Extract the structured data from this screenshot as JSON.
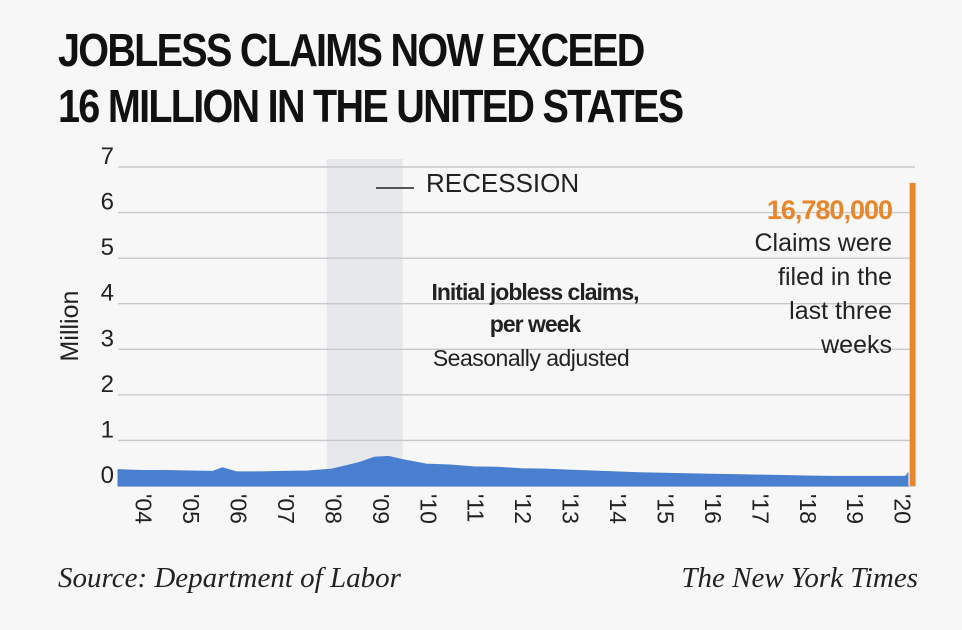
{
  "title_line1": "JOBLESS CLAIMS NOW EXCEED",
  "title_line2": "16 MILLION IN THE UNITED STATES",
  "source": "Source: Department of Labor",
  "credit": "The New York Times",
  "colors": {
    "area": "#4a7fd0",
    "spike": "#e8862a",
    "grid": "#c8c8c8",
    "recession": "#e6e8ec",
    "text": "#222222"
  },
  "chart_data": {
    "type": "area",
    "ylabel": "Million",
    "ylim": [
      0,
      7
    ],
    "yticks": [
      "0",
      "1",
      "2",
      "3",
      "4",
      "5",
      "6",
      "7"
    ],
    "xlim": [
      2003.5,
      2020.3
    ],
    "xticks": [
      {
        "label": "'04",
        "x": 2004
      },
      {
        "label": "'05",
        "x": 2005
      },
      {
        "label": "'06",
        "x": 2006
      },
      {
        "label": "'07",
        "x": 2007
      },
      {
        "label": "'08",
        "x": 2008
      },
      {
        "label": "'09",
        "x": 2009
      },
      {
        "label": "'10",
        "x": 2010
      },
      {
        "label": "'11",
        "x": 2011
      },
      {
        "label": "'12",
        "x": 2012
      },
      {
        "label": "'13",
        "x": 2013
      },
      {
        "label": "'14",
        "x": 2014
      },
      {
        "label": "'15",
        "x": 2015
      },
      {
        "label": "'16",
        "x": 2016
      },
      {
        "label": "'17",
        "x": 2017
      },
      {
        "label": "'18",
        "x": 2018
      },
      {
        "label": "'19",
        "x": 2019
      },
      {
        "label": "'20",
        "x": 2020
      }
    ],
    "grid": true,
    "recession": {
      "label": "RECESSION",
      "start": 2007.9,
      "end": 2009.5
    },
    "series": [
      {
        "x": [
          2003.5,
          2004.0,
          2004.5,
          2005.0,
          2005.5,
          2005.7,
          2006.0,
          2006.5,
          2007.0,
          2007.5,
          2008.0,
          2008.3,
          2008.6,
          2008.9,
          2009.2,
          2009.5,
          2010.0,
          2010.5,
          2011.0,
          2011.5,
          2012.0,
          2012.5,
          2013.0,
          2013.5,
          2014.0,
          2014.5,
          2015.0,
          2015.5,
          2016.0,
          2016.5,
          2017.0,
          2017.5,
          2018.0,
          2018.5,
          2019.0,
          2019.5,
          2020.1,
          2020.15
        ],
        "values": [
          0.36,
          0.34,
          0.34,
          0.33,
          0.32,
          0.4,
          0.31,
          0.31,
          0.32,
          0.33,
          0.37,
          0.44,
          0.52,
          0.63,
          0.65,
          0.58,
          0.48,
          0.46,
          0.42,
          0.41,
          0.38,
          0.37,
          0.35,
          0.33,
          0.31,
          0.29,
          0.28,
          0.27,
          0.26,
          0.25,
          0.24,
          0.23,
          0.22,
          0.21,
          0.21,
          0.21,
          0.21,
          0.28
        ]
      }
    ],
    "spike": {
      "x": 2020.25,
      "value": 6.65
    },
    "annotations": {
      "main_bold_1": "Initial jobless claims,",
      "main_bold_2": "per week",
      "main_note": "Seasonally adjusted",
      "spike_value": "16,780,000",
      "spike_note_lines": [
        "Claims were",
        "filed in the",
        "last three",
        "weeks"
      ]
    }
  }
}
